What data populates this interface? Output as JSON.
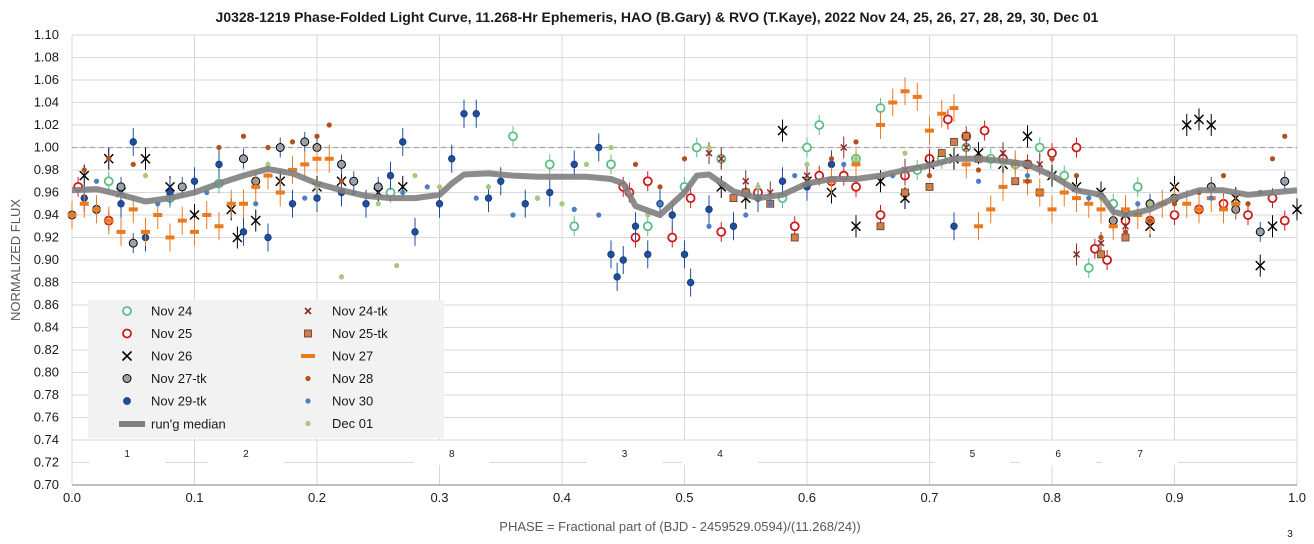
{
  "chart_data": {
    "type": "scatter",
    "title": "J0328-1219 Phase-Folded Light Curve, 11.268-Hr Ephemeris, HAO (B.Gary) & RVO (T.Kaye), 2022 Nov 24, 25, 26, 27, 28, 29, 30, Dec 01",
    "xlabel": "PHASE = Fractional part of (BJD - 2459529.0594)/(11.268/24))",
    "ylabel": "NORMALIZED FLUX",
    "xlim": [
      0.0,
      1.0
    ],
    "ylim": [
      0.7,
      1.1
    ],
    "x_ticks": [
      "0.0",
      "0.1",
      "0.2",
      "0.3",
      "0.4",
      "0.5",
      "0.6",
      "0.7",
      "0.8",
      "0.9",
      "1.0"
    ],
    "y_ticks": [
      "0.70",
      "0.72",
      "0.74",
      "0.76",
      "0.78",
      "0.80",
      "0.82",
      "0.84",
      "0.86",
      "0.88",
      "0.90",
      "0.92",
      "0.94",
      "0.96",
      "0.98",
      "1.00",
      "1.02",
      "1.04",
      "1.06",
      "1.08",
      "1.10"
    ],
    "reference_line": 1.0,
    "grid": true,
    "legend_position": "lower-left",
    "corner_note": "3",
    "segment_labels": [
      {
        "text": "1",
        "x": 0.045
      },
      {
        "text": "2",
        "x": 0.142
      },
      {
        "text": "8",
        "x": 0.31
      },
      {
        "text": "3",
        "x": 0.451
      },
      {
        "text": "4",
        "x": 0.529
      },
      {
        "text": "5",
        "x": 0.735
      },
      {
        "text": "6",
        "x": 0.805
      },
      {
        "text": "7",
        "x": 0.872
      }
    ],
    "running_median": {
      "name": "run'g median",
      "color": "#808080",
      "x": [
        0.0,
        0.02,
        0.04,
        0.06,
        0.08,
        0.1,
        0.12,
        0.14,
        0.16,
        0.18,
        0.2,
        0.22,
        0.24,
        0.26,
        0.28,
        0.3,
        0.31,
        0.32,
        0.34,
        0.36,
        0.38,
        0.4,
        0.42,
        0.44,
        0.45,
        0.46,
        0.48,
        0.5,
        0.51,
        0.52,
        0.54,
        0.56,
        0.58,
        0.6,
        0.62,
        0.64,
        0.66,
        0.68,
        0.7,
        0.72,
        0.74,
        0.76,
        0.78,
        0.8,
        0.82,
        0.84,
        0.85,
        0.86,
        0.88,
        0.9,
        0.92,
        0.94,
        0.96,
        0.98,
        1.0
      ],
      "y": [
        0.962,
        0.963,
        0.958,
        0.952,
        0.955,
        0.96,
        0.968,
        0.975,
        0.981,
        0.977,
        0.968,
        0.962,
        0.957,
        0.955,
        0.955,
        0.958,
        0.968,
        0.976,
        0.977,
        0.975,
        0.974,
        0.974,
        0.974,
        0.972,
        0.968,
        0.948,
        0.94,
        0.96,
        0.975,
        0.976,
        0.961,
        0.955,
        0.958,
        0.968,
        0.972,
        0.972,
        0.975,
        0.98,
        0.984,
        0.99,
        0.99,
        0.988,
        0.985,
        0.975,
        0.962,
        0.958,
        0.943,
        0.94,
        0.945,
        0.955,
        0.962,
        0.962,
        0.958,
        0.96,
        0.962
      ]
    },
    "series": [
      {
        "name": "Nov 24",
        "marker": "open-circle",
        "color": "#5bbf87",
        "x": [
          0.03,
          0.08,
          0.12,
          0.26,
          0.36,
          0.39,
          0.41,
          0.44,
          0.47,
          0.5,
          0.51,
          0.53,
          0.55,
          0.58,
          0.6,
          0.61,
          0.64,
          0.66,
          0.69,
          0.71,
          0.73,
          0.75,
          0.77,
          0.79,
          0.81,
          0.83,
          0.85,
          0.87
        ],
        "y": [
          0.97,
          0.955,
          0.968,
          0.96,
          1.01,
          0.985,
          0.93,
          0.985,
          0.93,
          0.965,
          1.0,
          0.99,
          0.96,
          0.955,
          1.0,
          1.02,
          0.99,
          1.035,
          0.98,
          0.99,
          1.0,
          0.99,
          0.985,
          1.0,
          0.975,
          0.893,
          0.95,
          0.965
        ]
      },
      {
        "name": "Nov 25",
        "marker": "open-circle",
        "color": "#cc1a1a",
        "x": [
          0.005,
          0.03,
          0.45,
          0.455,
          0.46,
          0.47,
          0.49,
          0.505,
          0.53,
          0.56,
          0.59,
          0.61,
          0.62,
          0.63,
          0.64,
          0.66,
          0.68,
          0.7,
          0.715,
          0.73,
          0.745,
          0.76,
          0.78,
          0.8,
          0.82,
          0.835,
          0.845,
          0.86,
          0.88,
          0.9,
          0.92,
          0.94,
          0.96,
          0.98,
          0.99
        ],
        "y": [
          0.965,
          0.935,
          0.965,
          0.96,
          0.92,
          0.97,
          0.92,
          0.955,
          0.925,
          0.96,
          0.93,
          0.975,
          0.97,
          0.975,
          0.965,
          0.94,
          0.975,
          0.99,
          1.025,
          1.01,
          1.015,
          0.99,
          0.985,
          0.995,
          1.0,
          0.91,
          0.9,
          0.935,
          0.935,
          0.94,
          0.945,
          0.95,
          0.94,
          0.955,
          0.935
        ]
      },
      {
        "name": "Nov 26",
        "marker": "x",
        "color": "#000000",
        "x": [
          0.01,
          0.03,
          0.04,
          0.06,
          0.08,
          0.1,
          0.13,
          0.135,
          0.15,
          0.17,
          0.2,
          0.22,
          0.25,
          0.27,
          0.53,
          0.55,
          0.58,
          0.6,
          0.62,
          0.64,
          0.66,
          0.68,
          0.7,
          0.72,
          0.74,
          0.76,
          0.78,
          0.8,
          0.82,
          0.84,
          0.86,
          0.88,
          0.9,
          0.91,
          0.92,
          0.93,
          0.95,
          0.97,
          0.98,
          1.0
        ],
        "y": [
          0.975,
          0.99,
          0.96,
          0.99,
          0.965,
          0.94,
          0.945,
          0.92,
          0.935,
          0.97,
          0.965,
          0.97,
          0.96,
          0.965,
          0.965,
          0.955,
          1.015,
          0.97,
          0.96,
          0.93,
          0.97,
          0.955,
          0.985,
          0.99,
          0.995,
          0.985,
          1.01,
          0.975,
          0.965,
          0.96,
          0.94,
          0.93,
          0.965,
          1.02,
          1.025,
          1.02,
          0.955,
          0.895,
          0.93,
          0.945
        ]
      },
      {
        "name": "Nov 27-tk",
        "marker": "filled-circle-outline",
        "color": "#9aa3ad",
        "x": [
          0.0,
          0.02,
          0.04,
          0.05,
          0.09,
          0.14,
          0.15,
          0.17,
          0.19,
          0.2,
          0.22,
          0.23,
          0.25,
          0.85,
          0.88,
          0.9,
          0.93,
          0.95,
          0.97,
          0.99
        ],
        "y": [
          0.94,
          0.945,
          0.965,
          0.915,
          0.965,
          0.99,
          0.97,
          1.0,
          1.005,
          1.0,
          0.985,
          0.97,
          0.965,
          0.935,
          0.95,
          0.955,
          0.965,
          0.945,
          0.925,
          0.97
        ]
      },
      {
        "name": "Nov 29-tk",
        "marker": "filled-circle",
        "color": "#1f4e9e",
        "x": [
          0.01,
          0.04,
          0.05,
          0.06,
          0.08,
          0.1,
          0.12,
          0.14,
          0.16,
          0.18,
          0.2,
          0.22,
          0.24,
          0.26,
          0.27,
          0.28,
          0.3,
          0.31,
          0.32,
          0.33,
          0.34,
          0.35,
          0.37,
          0.39,
          0.41,
          0.43,
          0.44,
          0.445,
          0.45,
          0.46,
          0.47,
          0.48,
          0.49,
          0.5,
          0.505,
          0.52,
          0.54,
          0.56,
          0.58,
          0.6,
          0.62,
          0.72
        ],
        "y": [
          0.955,
          0.95,
          1.005,
          0.92,
          0.96,
          0.97,
          0.985,
          0.925,
          0.92,
          0.95,
          0.955,
          0.96,
          0.95,
          0.975,
          1.005,
          0.925,
          0.95,
          0.99,
          1.03,
          1.03,
          0.955,
          0.97,
          0.95,
          0.96,
          0.985,
          1.0,
          0.905,
          0.885,
          0.9,
          0.93,
          0.905,
          0.95,
          0.94,
          0.905,
          0.88,
          0.945,
          0.93,
          0.955,
          0.97,
          0.965,
          0.985,
          0.93
        ]
      },
      {
        "name": "Nov 24-tk",
        "marker": "x-small",
        "color": "#8b2a2a",
        "x": [
          0.52,
          0.53,
          0.55,
          0.57,
          0.6,
          0.63,
          0.68,
          0.7,
          0.73,
          0.76,
          0.79,
          0.82,
          0.84,
          0.86
        ],
        "y": [
          0.995,
          0.99,
          0.97,
          0.96,
          0.975,
          1.0,
          0.98,
          0.985,
          1.0,
          0.995,
          0.985,
          0.905,
          0.915,
          0.93
        ]
      },
      {
        "name": "Nov 25-tk",
        "marker": "square",
        "color": "#d07f4a",
        "x": [
          0.54,
          0.55,
          0.57,
          0.59,
          0.66,
          0.68,
          0.7,
          0.71,
          0.72,
          0.73,
          0.74,
          0.77,
          0.78,
          0.79,
          0.84,
          0.86
        ],
        "y": [
          0.955,
          0.96,
          0.95,
          0.92,
          0.93,
          0.96,
          0.965,
          0.995,
          1.005,
          1.01,
          0.99,
          0.97,
          0.985,
          0.96,
          0.905,
          0.92
        ]
      },
      {
        "name": "Nov 27",
        "marker": "dash",
        "color": "#e87a1f",
        "x": [
          0.0,
          0.01,
          0.02,
          0.03,
          0.04,
          0.05,
          0.06,
          0.07,
          0.08,
          0.09,
          0.1,
          0.11,
          0.12,
          0.13,
          0.14,
          0.15,
          0.16,
          0.17,
          0.18,
          0.19,
          0.2,
          0.21,
          0.62,
          0.64,
          0.66,
          0.67,
          0.68,
          0.69,
          0.7,
          0.71,
          0.72,
          0.73,
          0.74,
          0.75,
          0.76,
          0.77,
          0.78,
          0.79,
          0.8,
          0.81,
          0.82,
          0.83,
          0.84,
          0.85,
          0.86,
          0.87,
          0.88,
          0.89,
          0.9,
          0.91,
          0.92,
          0.93,
          0.94,
          0.95
        ],
        "y": [
          0.94,
          0.95,
          0.945,
          0.935,
          0.925,
          0.945,
          0.925,
          0.94,
          0.92,
          0.935,
          0.925,
          0.94,
          0.93,
          0.95,
          0.95,
          0.965,
          0.975,
          0.96,
          0.98,
          0.985,
          0.99,
          0.99,
          0.97,
          0.985,
          1.02,
          1.04,
          1.05,
          1.045,
          1.015,
          1.03,
          1.035,
          0.985,
          0.93,
          0.945,
          0.965,
          0.985,
          0.97,
          0.96,
          0.945,
          0.96,
          0.955,
          0.95,
          0.945,
          0.93,
          0.945,
          0.94,
          0.935,
          0.95,
          0.955,
          0.95,
          0.945,
          0.955,
          0.945,
          0.95
        ]
      },
      {
        "name": "Nov 28",
        "marker": "small-dot",
        "color": "#b0521e",
        "x": [
          0.01,
          0.03,
          0.05,
          0.12,
          0.14,
          0.16,
          0.18,
          0.2,
          0.21,
          0.22,
          0.46,
          0.48,
          0.5,
          0.62,
          0.64,
          0.7,
          0.72,
          0.74,
          0.76,
          0.78,
          0.8,
          0.82,
          0.84,
          0.86,
          0.88,
          0.9,
          0.92,
          0.94,
          0.96,
          0.98,
          0.99
        ],
        "y": [
          0.98,
          0.99,
          0.985,
          1.0,
          1.01,
          1.0,
          1.005,
          1.01,
          1.02,
          0.97,
          0.985,
          0.965,
          0.99,
          0.99,
          1.005,
          0.975,
          0.99,
          0.98,
          0.985,
          0.97,
          0.99,
          0.975,
          0.92,
          0.925,
          0.935,
          0.95,
          0.96,
          0.975,
          0.95,
          0.99,
          1.01
        ]
      },
      {
        "name": "Nov 30",
        "marker": "small-dot",
        "color": "#4a7fc6",
        "x": [
          0.02,
          0.07,
          0.11,
          0.15,
          0.19,
          0.23,
          0.27,
          0.29,
          0.33,
          0.36,
          0.38,
          0.41,
          0.43,
          0.48,
          0.52,
          0.55,
          0.57,
          0.59,
          0.63,
          0.67,
          0.74,
          0.78,
          0.83,
          0.87,
          0.93,
          0.97
        ],
        "y": [
          0.97,
          0.95,
          0.96,
          0.95,
          0.955,
          0.96,
          0.96,
          0.965,
          0.955,
          0.94,
          0.955,
          0.945,
          0.94,
          0.95,
          0.93,
          0.94,
          0.95,
          0.975,
          0.985,
          0.975,
          0.97,
          0.975,
          0.955,
          0.95,
          0.955,
          0.96
        ]
      },
      {
        "name": "Dec 01",
        "marker": "small-dot",
        "color": "#a8c97a",
        "x": [
          0.06,
          0.16,
          0.2,
          0.22,
          0.25,
          0.265,
          0.28,
          0.3,
          0.34,
          0.38,
          0.4,
          0.42,
          0.44,
          0.47,
          0.52,
          0.56,
          0.6,
          0.64,
          0.68,
          0.72,
          0.76,
          0.8,
          0.84,
          0.88
        ],
        "y": [
          0.975,
          0.985,
          0.965,
          0.885,
          0.95,
          0.895,
          0.975,
          0.965,
          0.965,
          0.955,
          0.95,
          0.985,
          1.0,
          0.94,
          1.0,
          0.965,
          0.985,
          0.99,
          0.995,
          0.99,
          0.985,
          0.975,
          0.955,
          0.95
        ]
      }
    ]
  }
}
